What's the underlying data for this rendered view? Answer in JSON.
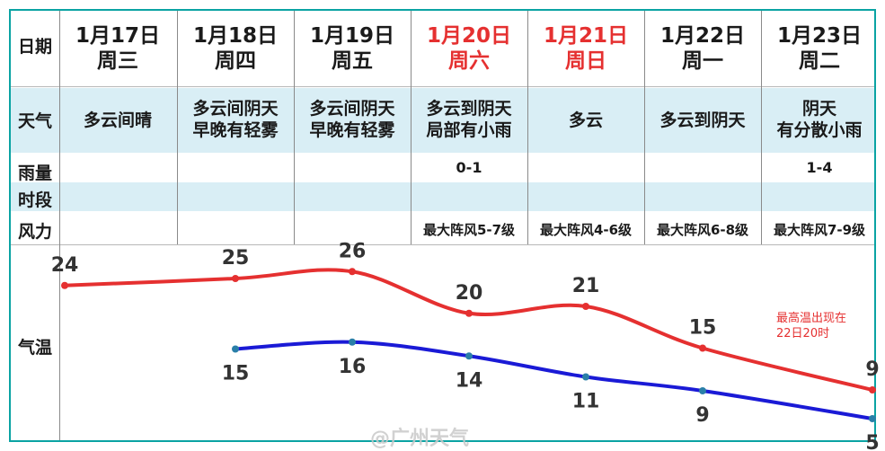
{
  "header_label": "日期",
  "days": [
    {
      "date": "1月17日",
      "weekday": "周三",
      "weather": [
        "多云间晴"
      ],
      "rain": "",
      "wind": "",
      "highlight": false
    },
    {
      "date": "1月18日",
      "weekday": "周四",
      "weather": [
        "多云间阴天",
        "早晚有轻雾"
      ],
      "rain": "",
      "wind": "",
      "highlight": false
    },
    {
      "date": "1月19日",
      "weekday": "周五",
      "weather": [
        "多云间阴天",
        "早晚有轻雾"
      ],
      "rain": "",
      "wind": "",
      "highlight": false
    },
    {
      "date": "1月20日",
      "weekday": "周六",
      "weather": [
        "多云到阴天",
        "局部有小雨"
      ],
      "rain": "0-1",
      "wind": "最大阵风5-7级",
      "highlight": true
    },
    {
      "date": "1月21日",
      "weekday": "周日",
      "weather": [
        "多云"
      ],
      "rain": "",
      "wind": "最大阵风4-6级",
      "highlight": true
    },
    {
      "date": "1月22日",
      "weekday": "周一",
      "weather": [
        "多云到阴天"
      ],
      "rain": "",
      "wind": "最大阵风6-8级",
      "highlight": false
    },
    {
      "date": "1月23日",
      "weekday": "周二",
      "weather": [
        "阴天",
        "有分散小雨"
      ],
      "rain": "1-4",
      "wind": "最大阵风7-9级",
      "highlight": false
    }
  ],
  "row_labels": {
    "weather": "天气",
    "rain1": "雨量",
    "rain2": "时段",
    "wind": "风力",
    "temp": "气温"
  },
  "note": [
    "最高温出现在",
    "22日20时"
  ],
  "watermark": "@广州天气",
  "colors": {
    "border": "#0aa3a3",
    "row_shade": "#d9eef5",
    "weekend": "#e53030",
    "high_line": "#e53030",
    "low_line": "#1a1ad6",
    "point": "#2a7fa8"
  },
  "chart_data": {
    "type": "line",
    "x": [
      "1月17日",
      "1月18日",
      "1月19日",
      "1月20日",
      "1月21日",
      "1月22日",
      "1月23日"
    ],
    "series": [
      {
        "values": [
          24,
          25,
          26,
          20,
          21,
          15,
          9
        ]
      },
      {
        "values": [
          null,
          15,
          16,
          14,
          11,
          9,
          5
        ]
      }
    ],
    "title": "",
    "xlabel": "",
    "ylabel": "气温",
    "grid": false
  }
}
